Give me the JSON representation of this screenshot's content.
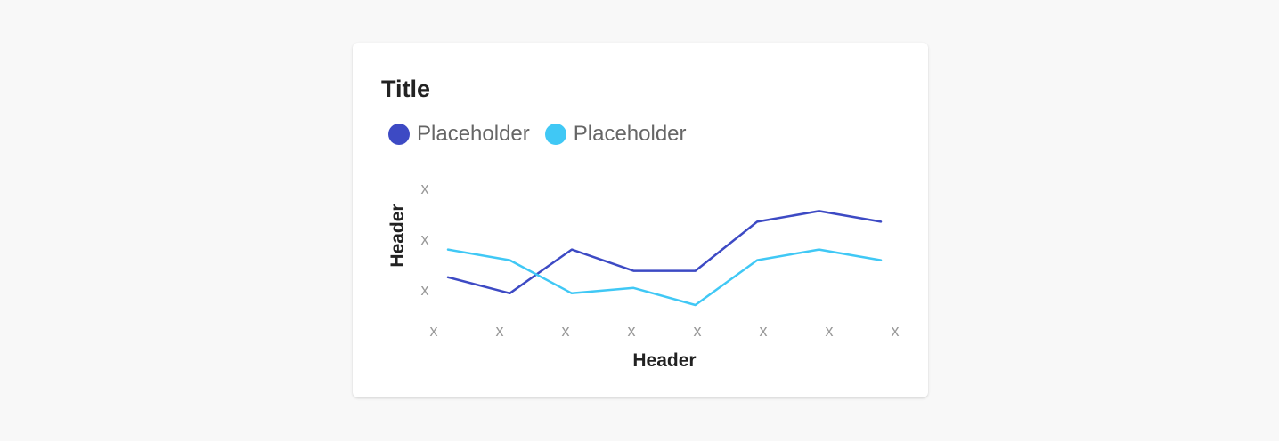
{
  "card": {
    "title": "Title"
  },
  "chart_data": {
    "type": "line",
    "title": "Title",
    "xlabel": "Header",
    "ylabel": "Header",
    "categories": [
      "x",
      "x",
      "x",
      "x",
      "x",
      "x",
      "x",
      "x"
    ],
    "y_ticks": [
      "x",
      "x",
      "x"
    ],
    "ylim": [
      0,
      100
    ],
    "grid": false,
    "legend_position": "top-left",
    "series": [
      {
        "name": "Placeholder",
        "color": "#3d4ac4",
        "values": [
          26,
          11,
          52,
          32,
          32,
          78,
          88,
          78
        ]
      },
      {
        "name": "Placeholder",
        "color": "#40c8f5",
        "values": [
          52,
          42,
          11,
          16,
          0,
          42,
          52,
          42
        ]
      }
    ]
  }
}
